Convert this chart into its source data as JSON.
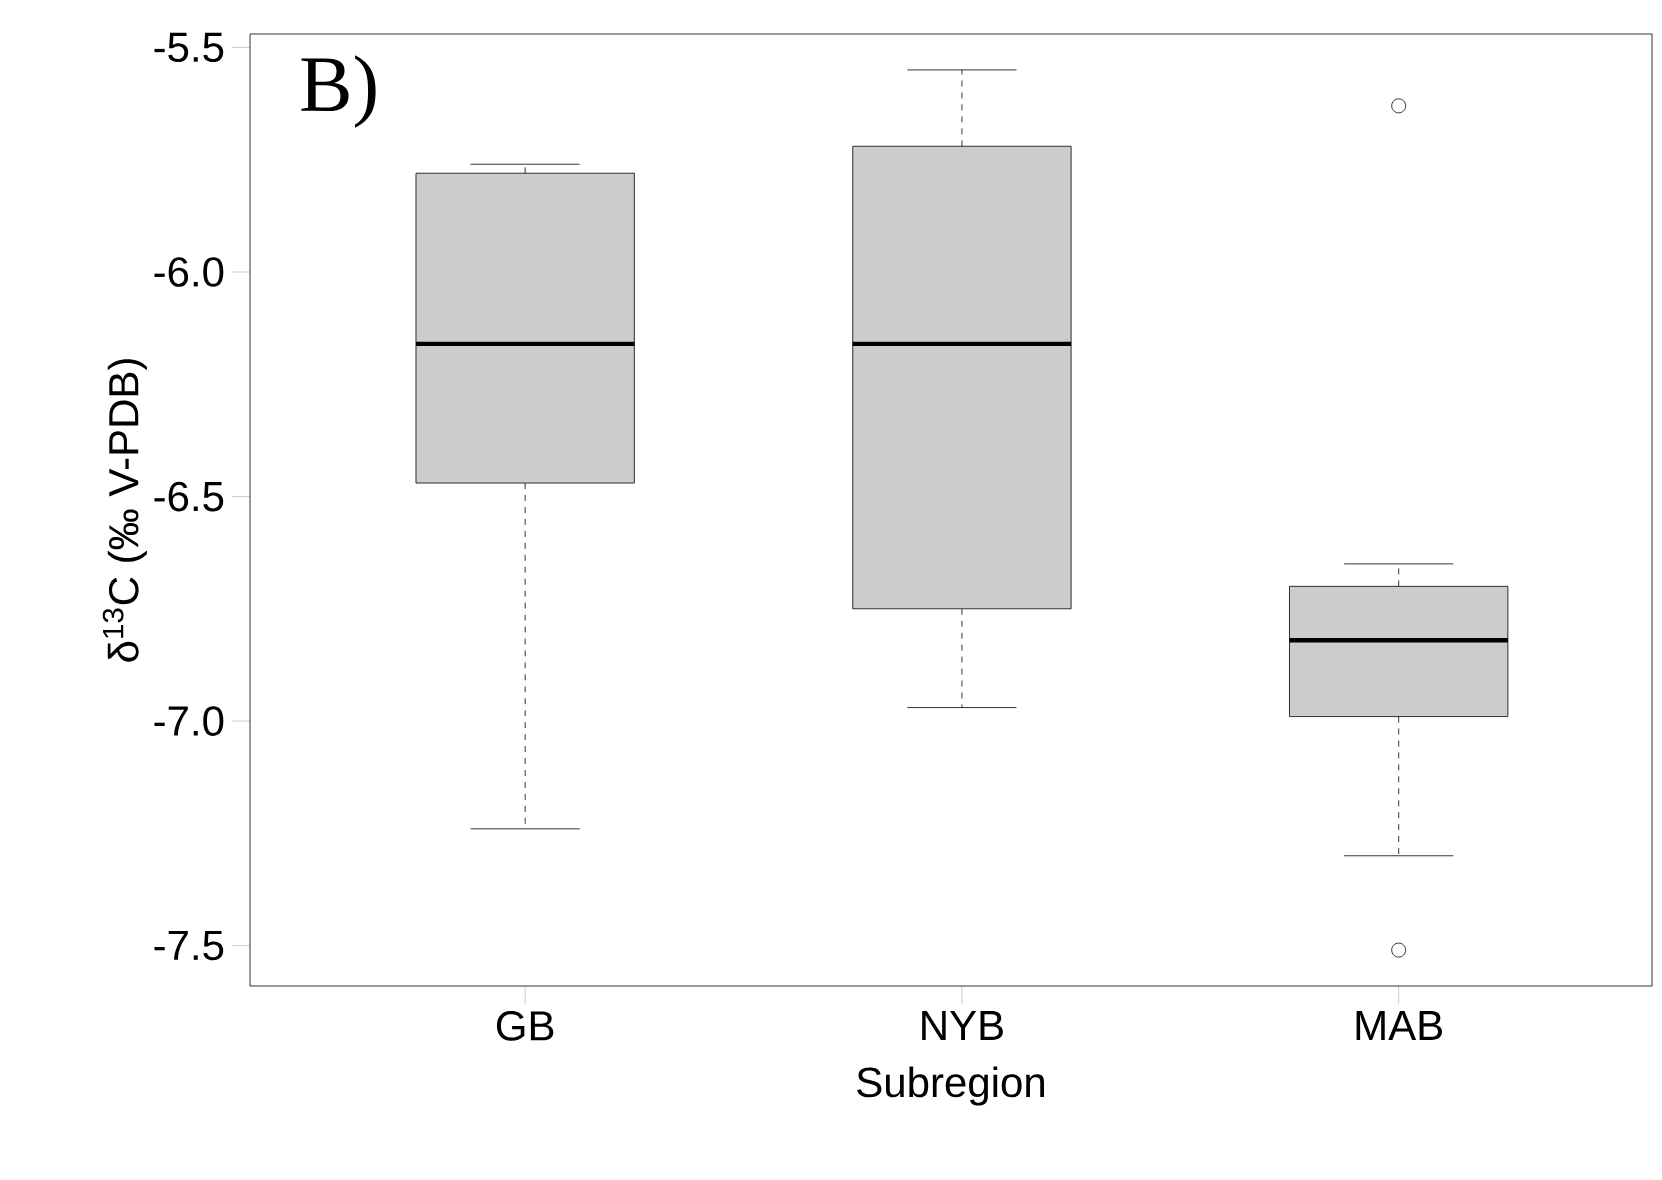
{
  "chart_data": {
    "type": "box",
    "xlabel": "Subregion",
    "ylabel": "δ$^{13}$C (‰ V-PDB)",
    "annotations": [
      "B)"
    ],
    "categories": [
      "GB",
      "NYB",
      "MAB"
    ],
    "color": "#cccccc",
    "boxes": [
      {
        "low": -7.24,
        "q1": -6.47,
        "median": -6.16,
        "q3": -5.78,
        "high": -5.76
      },
      {
        "low": -6.97,
        "q1": -6.75,
        "median": -6.16,
        "q3": -5.72,
        "high": -5.55
      },
      {
        "low": -7.3,
        "q1": -6.99,
        "median": -6.82,
        "q3": -6.7,
        "high": -6.65,
        "outliers": [
          -5.63,
          -7.51
        ]
      }
    ],
    "ylim": [
      -7.59,
      -5.47
    ],
    "yticks": [
      -5.5,
      {
        "value": -6,
        "label": "-6.0"
      },
      -6.5,
      {
        "value": -7,
        "label": "-7.0"
      },
      -7.5
    ]
  }
}
